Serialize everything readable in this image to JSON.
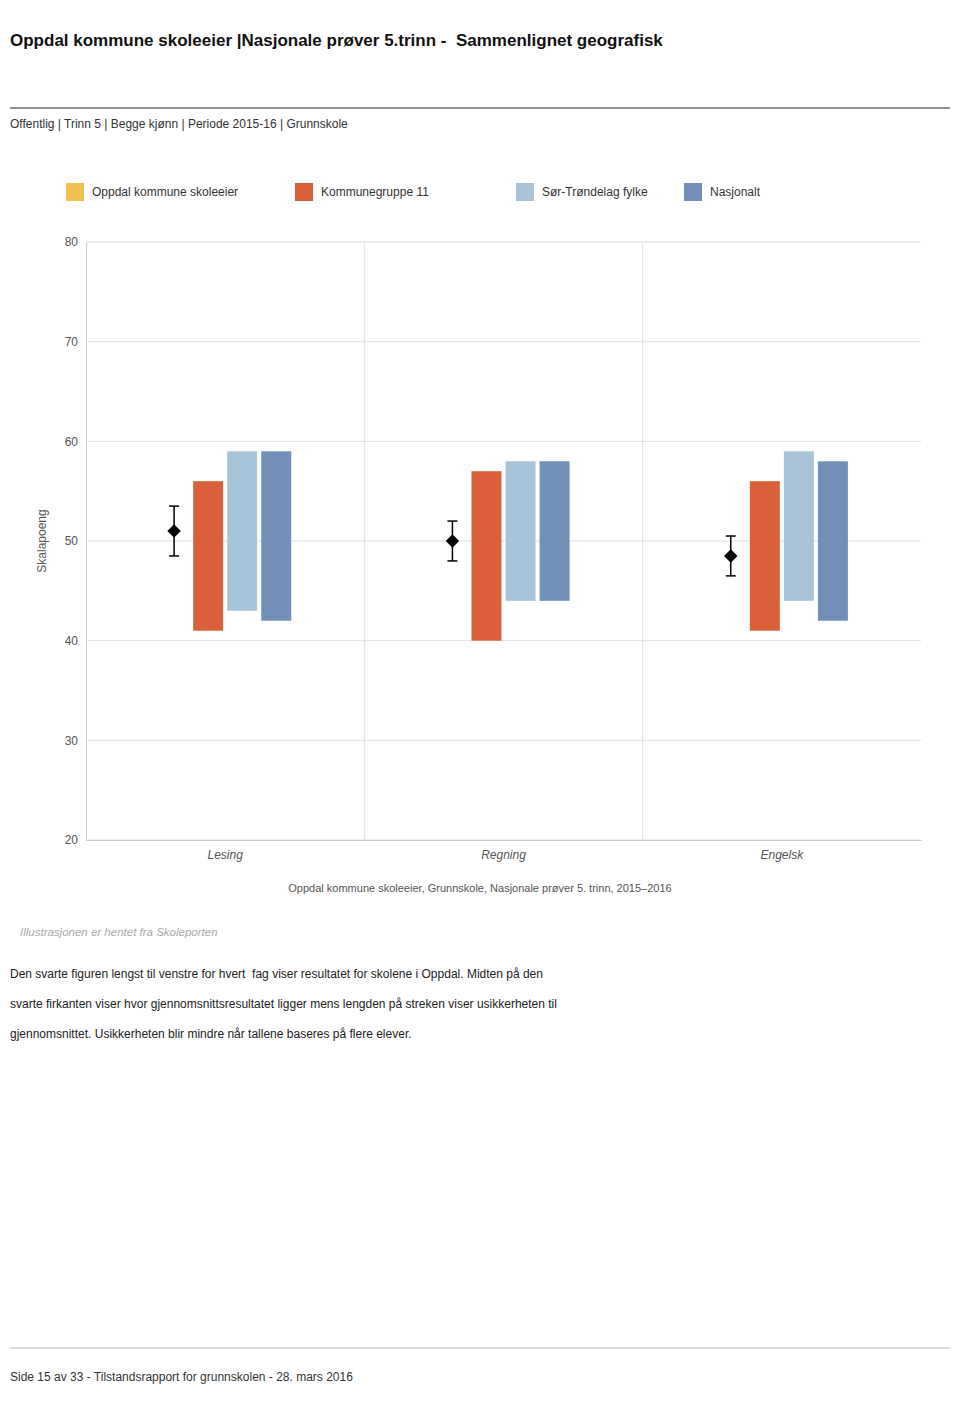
{
  "chart_data": {
    "type": "bar",
    "title": "Oppdal kommune skoleeier |Nasjonale prøver 5.trinn -  Sammenlignet geografisk",
    "subtitle": "Offentlig | Trinn 5 | Begge kjønn | Periode 2015-16 | Grunnskole",
    "ylabel": "Skalapoeng",
    "categories": [
      "Lesing",
      "Regning",
      "Engelsk"
    ],
    "series": [
      {
        "name": "Oppdal kommune skoleeier",
        "color": "#f0c050",
        "type": "scatter",
        "marker": "diamond",
        "values": [
          51.0,
          50.0,
          48.5
        ],
        "errors": [
          2.5,
          2.0,
          2.0
        ]
      },
      {
        "name": "Kommunegruppe 11",
        "color": "#d9603b",
        "bottoms": [
          41,
          40,
          41
        ],
        "values": [
          56,
          57,
          56
        ]
      },
      {
        "name": "Sør-Trøndelag fylke",
        "color": "#a8c4d8",
        "bottoms": [
          43,
          44,
          44
        ],
        "values": [
          59,
          58,
          59
        ]
      },
      {
        "name": "Nasjonalt",
        "color": "#7090b8",
        "bottoms": [
          42,
          44,
          42
        ],
        "values": [
          59,
          58,
          58
        ]
      }
    ],
    "ylim": [
      20,
      80
    ],
    "yticks": [
      20,
      30,
      40,
      50,
      60,
      70,
      80
    ],
    "grid": true,
    "legend": "top",
    "caption": "Oppdal kommune skoleeier, Grunnskole, Nasjonale prøver 5. trinn, 2015–2016",
    "source": "Illustrasjonen er hentet fra Skoleporten",
    "description": [
      "Den svarte figuren lengst til venstre for hvert  fag viser resultatet for skolene i Oppdal. Midten på den",
      "svarte firkanten viser hvor gjennomsnittsresultatet ligger mens lengden på streken viser usikkerheten til",
      "gjennomsnittet. Usikkerheten blir mindre når tallene baseres på flere elever."
    ],
    "footer": "Side 15 av 33 - Tilstandsrapport for grunnskolen - 28. mars 2016"
  }
}
